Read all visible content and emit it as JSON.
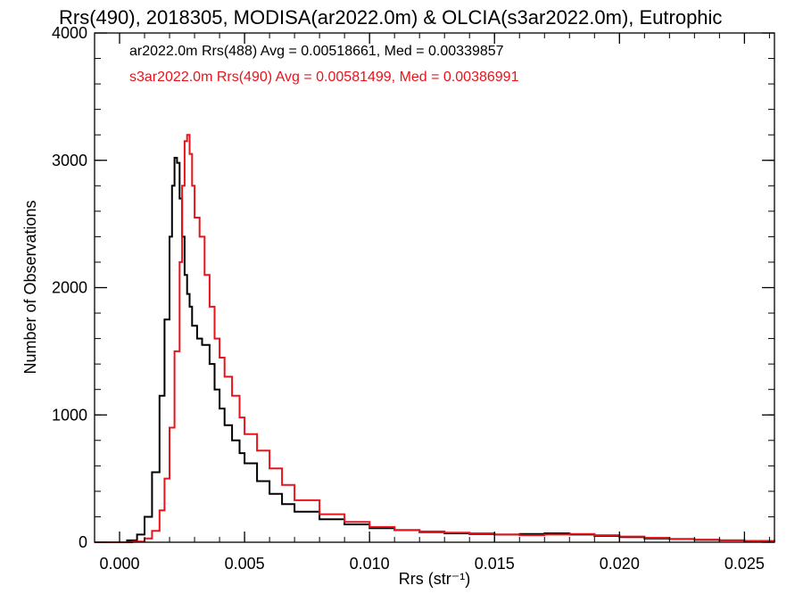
{
  "chart_data": {
    "type": "line",
    "step": true,
    "title": "Rrs(490), 2018305, MODISA(ar2022.0m) & OLCIA(s3ar2022.0m), Eutrophic",
    "xlabel": "Rrs (str⁻¹)",
    "ylabel": "Number of Observations",
    "xlim": [
      -0.001,
      0.0262
    ],
    "ylim": [
      0,
      4000
    ],
    "x_ticks": [
      {
        "value": 0.0,
        "label": "0.000"
      },
      {
        "value": 0.005,
        "label": "0.005"
      },
      {
        "value": 0.01,
        "label": "0.010"
      },
      {
        "value": 0.015,
        "label": "0.015"
      },
      {
        "value": 0.02,
        "label": "0.020"
      },
      {
        "value": 0.025,
        "label": "0.025"
      }
    ],
    "y_ticks": [
      {
        "value": 0,
        "label": "0"
      },
      {
        "value": 1000,
        "label": "1000"
      },
      {
        "value": 2000,
        "label": "2000"
      },
      {
        "value": 3000,
        "label": "3000"
      },
      {
        "value": 4000,
        "label": "4000"
      }
    ],
    "x_minor_step": 0.001,
    "y_minor_step": 200,
    "grid": false,
    "legend": [
      {
        "text": "ar2022.0m Rrs(488) Avg = 0.00518661, Med = 0.00339857",
        "color": "#000000"
      },
      {
        "text": "s3ar2022.0m Rrs(490) Avg = 0.00581499, Med = 0.00386991",
        "color": "#e8141b"
      }
    ],
    "legend_placement": "top-left",
    "series": [
      {
        "color": "#000000",
        "x": [
          -0.001,
          0.0003,
          0.0007,
          0.001,
          0.0013,
          0.0016,
          0.0018,
          0.002,
          0.0021,
          0.0022,
          0.0023,
          0.0024,
          0.0025,
          0.0026,
          0.0027,
          0.0028,
          0.0029,
          0.0031,
          0.0033,
          0.0036,
          0.0038,
          0.004,
          0.0042,
          0.0045,
          0.0048,
          0.005,
          0.0055,
          0.006,
          0.0065,
          0.007,
          0.008,
          0.009,
          0.01,
          0.011,
          0.012,
          0.013,
          0.014,
          0.015,
          0.016,
          0.017,
          0.018,
          0.019,
          0.02,
          0.021,
          0.022,
          0.023,
          0.024,
          0.025,
          0.0262
        ],
        "y": [
          0,
          15,
          60,
          200,
          550,
          1150,
          1750,
          2400,
          2800,
          3020,
          2980,
          2700,
          2400,
          2100,
          1950,
          1850,
          1700,
          1600,
          1550,
          1400,
          1200,
          1050,
          920,
          800,
          700,
          620,
          480,
          380,
          300,
          240,
          180,
          140,
          110,
          95,
          80,
          70,
          65,
          60,
          65,
          70,
          60,
          50,
          40,
          30,
          25,
          18,
          15,
          10,
          5
        ]
      },
      {
        "color": "#e8141b",
        "x": [
          -0.001,
          0.0005,
          0.001,
          0.0013,
          0.0016,
          0.0018,
          0.002,
          0.0022,
          0.0024,
          0.0025,
          0.0026,
          0.0027,
          0.0028,
          0.0029,
          0.003,
          0.0032,
          0.0034,
          0.0036,
          0.0038,
          0.004,
          0.0042,
          0.0045,
          0.0048,
          0.005,
          0.0055,
          0.006,
          0.0065,
          0.007,
          0.008,
          0.009,
          0.01,
          0.011,
          0.012,
          0.013,
          0.014,
          0.015,
          0.016,
          0.017,
          0.018,
          0.019,
          0.02,
          0.021,
          0.022,
          0.023,
          0.024,
          0.025,
          0.0262
        ],
        "y": [
          0,
          5,
          30,
          90,
          250,
          500,
          900,
          1500,
          2200,
          2800,
          3150,
          3200,
          3050,
          2800,
          2550,
          2400,
          2100,
          1850,
          1600,
          1450,
          1300,
          1150,
          980,
          850,
          720,
          580,
          450,
          330,
          220,
          160,
          120,
          95,
          85,
          75,
          70,
          60,
          55,
          60,
          65,
          55,
          45,
          35,
          25,
          20,
          15,
          10,
          5
        ]
      }
    ]
  }
}
